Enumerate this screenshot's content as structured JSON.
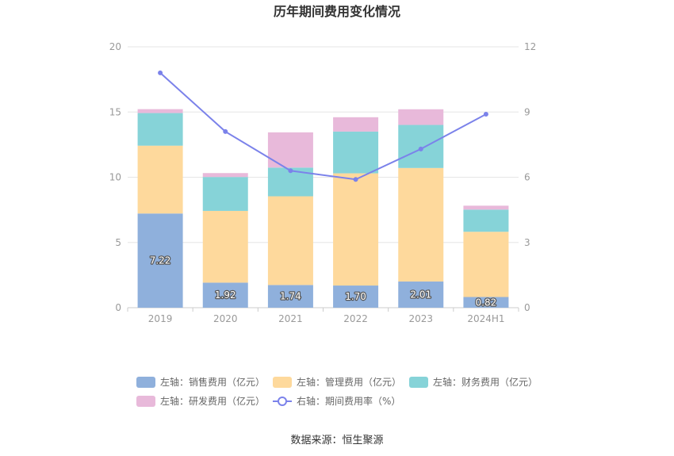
{
  "chart_data": {
    "type": "bar",
    "title": "历年期间费用变化情况",
    "categories": [
      "2019",
      "2020",
      "2021",
      "2022",
      "2023",
      "2024H1"
    ],
    "stacked": true,
    "left_axis": {
      "min": 0,
      "max": 20,
      "ticks": [
        "0",
        "5",
        "10",
        "15",
        "20"
      ]
    },
    "right_axis": {
      "min": 0,
      "max": 12,
      "ticks": [
        "0",
        "3",
        "6",
        "9",
        "12"
      ]
    },
    "series": [
      {
        "name": "左轴：销售费用（亿元）",
        "type": "bar",
        "axis": "left",
        "color": "#8fb0dc",
        "values": [
          7.22,
          1.92,
          1.74,
          1.7,
          2.01,
          0.82
        ],
        "labels": [
          "7.22",
          "1.92",
          "1.74",
          "1.70",
          "2.01",
          "0.82"
        ]
      },
      {
        "name": "左轴：管理费用（亿元）",
        "type": "bar",
        "axis": "left",
        "color": "#fed99c",
        "values": [
          5.2,
          5.5,
          6.8,
          8.6,
          8.7,
          5.0
        ]
      },
      {
        "name": "左轴：财务费用（亿元）",
        "type": "bar",
        "axis": "left",
        "color": "#86d3d8",
        "values": [
          2.5,
          2.6,
          2.2,
          3.2,
          3.3,
          1.7
        ]
      },
      {
        "name": "左轴：研发费用（亿元）",
        "type": "bar",
        "axis": "left",
        "color": "#e8b9da",
        "values": [
          0.3,
          0.3,
          2.7,
          1.1,
          1.2,
          0.3
        ]
      },
      {
        "name": "右轴：期间费用率（%）",
        "type": "line",
        "axis": "right",
        "color": "#7b82ea",
        "values": [
          10.8,
          8.1,
          6.3,
          5.9,
          7.3,
          8.9
        ]
      }
    ],
    "legend_position": "bottom",
    "grid": true
  },
  "source": "数据来源：恒生聚源"
}
